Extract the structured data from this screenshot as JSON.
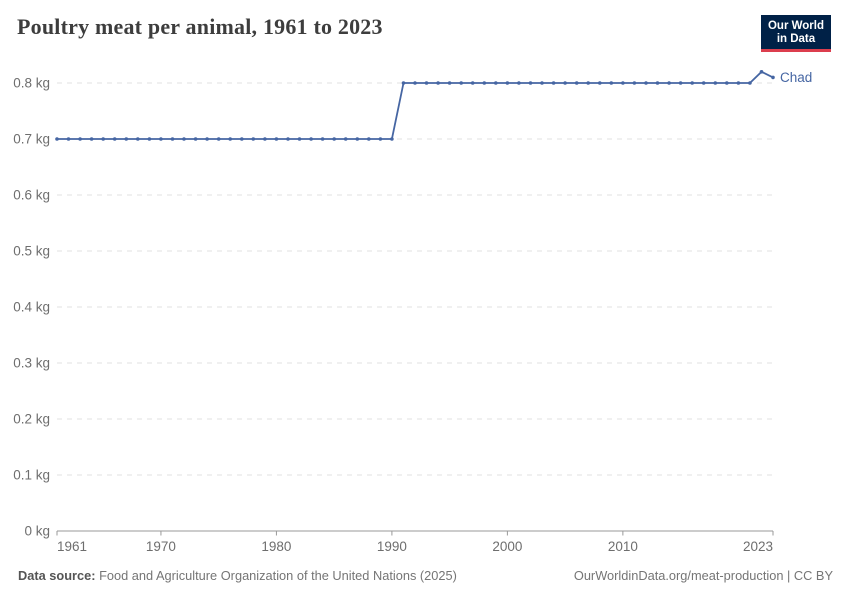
{
  "header": {
    "title": "Poultry meat per animal, 1961 to 2023",
    "logo": {
      "line1": "Our World",
      "line2": "in Data",
      "bg_color": "#002147",
      "accent_color": "#dc3e4e"
    }
  },
  "footer": {
    "source_label": "Data source:",
    "source_text": " Food and Agriculture Organization of the United Nations (2025)",
    "link_text": "OurWorldinData.org/meat-production | CC BY"
  },
  "chart_data": {
    "type": "line",
    "title": "Poultry meat per animal, 1961 to 2023",
    "unit": "kg",
    "grid": "dashed-horizontal",
    "legend": "end-of-line-label",
    "xlim": [
      1961,
      2023
    ],
    "ylim": [
      0,
      0.8
    ],
    "xticks": [
      1961,
      1970,
      1980,
      1990,
      2000,
      2010,
      2023
    ],
    "yticks": [
      {
        "value": 0,
        "label": "0 kg"
      },
      {
        "value": 0.1,
        "label": "0.1 kg"
      },
      {
        "value": 0.2,
        "label": "0.2 kg"
      },
      {
        "value": 0.3,
        "label": "0.3 kg"
      },
      {
        "value": 0.4,
        "label": "0.4 kg"
      },
      {
        "value": 0.5,
        "label": "0.5 kg"
      },
      {
        "value": 0.6,
        "label": "0.6 kg"
      },
      {
        "value": 0.7,
        "label": "0.7 kg"
      },
      {
        "value": 0.8,
        "label": "0.8 kg"
      }
    ],
    "x": [
      1961,
      1962,
      1963,
      1964,
      1965,
      1966,
      1967,
      1968,
      1969,
      1970,
      1971,
      1972,
      1973,
      1974,
      1975,
      1976,
      1977,
      1978,
      1979,
      1980,
      1981,
      1982,
      1983,
      1984,
      1985,
      1986,
      1987,
      1988,
      1989,
      1990,
      1991,
      1992,
      1993,
      1994,
      1995,
      1996,
      1997,
      1998,
      1999,
      2000,
      2001,
      2002,
      2003,
      2004,
      2005,
      2006,
      2007,
      2008,
      2009,
      2010,
      2011,
      2012,
      2013,
      2014,
      2015,
      2016,
      2017,
      2018,
      2019,
      2020,
      2021,
      2022,
      2023
    ],
    "series": [
      {
        "name": "Chad",
        "color": "#4666a3",
        "values": [
          0.7,
          0.7,
          0.7,
          0.7,
          0.7,
          0.7,
          0.7,
          0.7,
          0.7,
          0.7,
          0.7,
          0.7,
          0.7,
          0.7,
          0.7,
          0.7,
          0.7,
          0.7,
          0.7,
          0.7,
          0.7,
          0.7,
          0.7,
          0.7,
          0.7,
          0.7,
          0.7,
          0.7,
          0.7,
          0.7,
          0.8,
          0.8,
          0.8,
          0.8,
          0.8,
          0.8,
          0.8,
          0.8,
          0.8,
          0.8,
          0.8,
          0.8,
          0.8,
          0.8,
          0.8,
          0.8,
          0.8,
          0.8,
          0.8,
          0.8,
          0.8,
          0.8,
          0.8,
          0.8,
          0.8,
          0.8,
          0.8,
          0.8,
          0.8,
          0.8,
          0.8,
          0.82,
          0.81
        ]
      }
    ],
    "axis_color": "#999999",
    "gridline_color": "#e0e0e0",
    "tick_label_color": "#6e6e6e"
  }
}
